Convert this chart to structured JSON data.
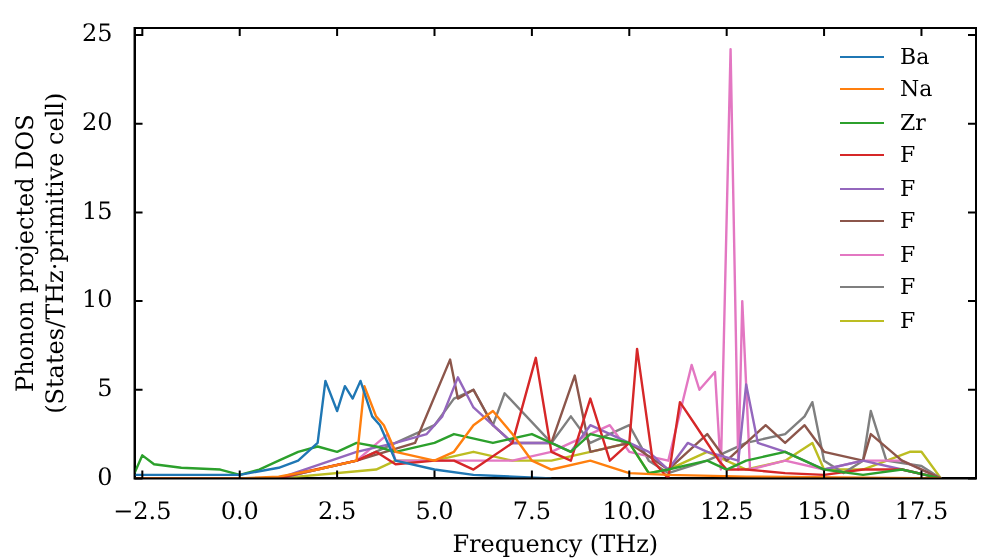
{
  "chart_data": {
    "type": "line",
    "xlabel": "Frequency (THz)",
    "ylabel": "Phonon projected DOS\n(States/THz·primitive cell)",
    "xlim": [
      -2.7,
      18.9
    ],
    "ylim": [
      0,
      25.4
    ],
    "xticks": [
      {
        "value": -2.5,
        "label": "−2.5"
      },
      {
        "value": 0,
        "label": "0.0"
      },
      {
        "value": 2.5,
        "label": "2.5"
      },
      {
        "value": 5,
        "label": "5.0"
      },
      {
        "value": 7.5,
        "label": "7.5"
      },
      {
        "value": 10,
        "label": "10.0"
      },
      {
        "value": 12.5,
        "label": "12.5"
      },
      {
        "value": 15,
        "label": "15.0"
      },
      {
        "value": 17.5,
        "label": "17.5"
      }
    ],
    "yticks": [
      0,
      5,
      10,
      15,
      20,
      25
    ],
    "grid": false,
    "legend": "top right",
    "marker": "none",
    "line_style": "solid",
    "series": [
      {
        "name": "Ba",
        "color": "#1f77b4",
        "x": [
          -2.7,
          -1,
          0,
          1,
          1.5,
          2,
          2.2,
          2.5,
          2.7,
          2.9,
          3.1,
          3.4,
          3.6,
          4,
          5,
          6,
          8
        ],
        "values": [
          0.2,
          0.2,
          0.2,
          0.6,
          1,
          2,
          5.5,
          3.8,
          5.2,
          4.5,
          5.5,
          3.5,
          3,
          1,
          0.5,
          0.2,
          0
        ]
      },
      {
        "name": "Na",
        "color": "#ff7f0e",
        "x": [
          -2.7,
          0,
          1,
          2,
          3,
          3.2,
          3.5,
          3.7,
          4,
          5,
          5.5,
          6,
          6.5,
          7,
          7.5,
          8,
          9,
          10,
          11,
          13,
          18
        ],
        "values": [
          0,
          0,
          0.1,
          0.5,
          1,
          5.2,
          3.5,
          3,
          1.5,
          1,
          1.5,
          3,
          3.8,
          2.5,
          1,
          0.5,
          1,
          0.3,
          0.2,
          0.1,
          0
        ]
      },
      {
        "name": "Zr",
        "color": "#2ca02c",
        "x": [
          -2.7,
          -2.5,
          -2.2,
          -1.5,
          -0.5,
          0,
          0.5,
          1,
          1.5,
          2,
          2.5,
          3,
          3.5,
          4,
          5,
          5.5,
          6.5,
          7.5,
          8.5,
          9,
          10,
          10.5,
          11,
          12,
          12.5,
          13,
          14,
          15,
          16,
          17,
          18
        ],
        "values": [
          0.3,
          1.3,
          0.8,
          0.6,
          0.5,
          0.2,
          0.5,
          1,
          1.5,
          1.8,
          1.5,
          2,
          1.8,
          1.5,
          2,
          2.5,
          2,
          2.5,
          1.5,
          2.5,
          2,
          0.3,
          0.5,
          1,
          0.5,
          1,
          1.5,
          0.5,
          0.2,
          0.5,
          0
        ]
      },
      {
        "name": "F",
        "color": "#d62728",
        "x": [
          -2.7,
          1,
          1.5,
          3,
          3.5,
          4,
          5,
          5.5,
          6,
          7,
          7.6,
          8,
          8.5,
          9,
          9.5,
          10,
          10.2,
          10.6,
          11,
          11.3,
          11.7,
          12.3,
          12.5,
          13,
          14,
          15,
          16,
          17,
          18
        ],
        "values": [
          0,
          0,
          0.3,
          1,
          1.5,
          0.8,
          1,
          1,
          0.5,
          2,
          6.8,
          1.5,
          1,
          4.5,
          1,
          2,
          7.3,
          1,
          0,
          4.3,
          3,
          1,
          0.5,
          0.5,
          0.3,
          0.2,
          0.5,
          0.5,
          0
        ]
      },
      {
        "name": "F",
        "color": "#9467bd",
        "x": [
          -2.7,
          1,
          3,
          4,
          4.8,
          5.2,
          5.6,
          6,
          6.5,
          7,
          8,
          8.5,
          9,
          10,
          10.5,
          11,
          11.5,
          12,
          12.8,
          13,
          13.3,
          14,
          15,
          16,
          17,
          18
        ],
        "values": [
          0,
          0,
          1.5,
          2,
          2.5,
          3.5,
          5.7,
          4,
          3,
          2,
          2,
          1.5,
          3,
          2,
          1.5,
          0.5,
          2,
          1.5,
          1,
          5.3,
          2,
          1.5,
          0.5,
          1,
          0.5,
          0
        ]
      },
      {
        "name": "F",
        "color": "#8c564b",
        "x": [
          -2.7,
          1,
          3,
          4.5,
          5.4,
          5.6,
          6,
          6.5,
          7,
          8,
          8.6,
          9,
          10,
          11,
          12,
          12.5,
          13,
          13.5,
          14,
          14.5,
          15,
          16,
          16.2,
          17,
          18
        ],
        "values": [
          0,
          0,
          1,
          2,
          6.7,
          4.5,
          5,
          3,
          2,
          2,
          5.8,
          1.5,
          2,
          0.5,
          2.5,
          1,
          2,
          3,
          2,
          3,
          1.5,
          1,
          2.5,
          1,
          0
        ]
      },
      {
        "name": "F",
        "color": "#e377c2",
        "x": [
          -2.7,
          1,
          3,
          3.8,
          4,
          5,
          7,
          8,
          8.5,
          9.5,
          10,
          11,
          11.6,
          11.8,
          12.2,
          12.35,
          12.6,
          12.8,
          12.9,
          13.1,
          14,
          15,
          16,
          17,
          18
        ],
        "values": [
          0,
          0,
          1,
          2.5,
          1,
          1,
          1,
          1.5,
          2,
          3,
          1.5,
          1,
          6.4,
          5,
          6,
          0.5,
          24.2,
          0.5,
          10,
          0.5,
          1,
          0.5,
          1,
          1,
          0
        ]
      },
      {
        "name": "F",
        "color": "#7f7f7f",
        "x": [
          -2.7,
          1,
          3,
          4,
          5,
          5.5,
          6,
          6.5,
          6.8,
          8,
          8.5,
          9,
          10,
          10.5,
          11,
          12,
          13,
          14,
          14.5,
          14.7,
          15,
          15.5,
          16,
          16.2,
          16.6,
          17.5,
          18
        ],
        "values": [
          0,
          0,
          1,
          2,
          3,
          4.5,
          5,
          3,
          4.8,
          2,
          3.5,
          2,
          3,
          1,
          0.3,
          1,
          2,
          2.5,
          3.5,
          4.3,
          1,
          0.3,
          1,
          3.8,
          1,
          0.7,
          0
        ]
      },
      {
        "name": "F",
        "color": "#bcbd22",
        "x": [
          -2.7,
          1,
          3.5,
          4,
          5,
          6,
          7,
          8,
          9,
          10,
          10.5,
          11,
          12,
          13,
          14,
          14.7,
          15,
          16,
          17.2,
          17.5,
          18
        ],
        "values": [
          0,
          0,
          0.5,
          1,
          1,
          1.5,
          1,
          1,
          1.5,
          2,
          0.3,
          0.5,
          1.5,
          0.5,
          1,
          2,
          0.5,
          0.5,
          1.5,
          1.5,
          0
        ]
      }
    ]
  }
}
